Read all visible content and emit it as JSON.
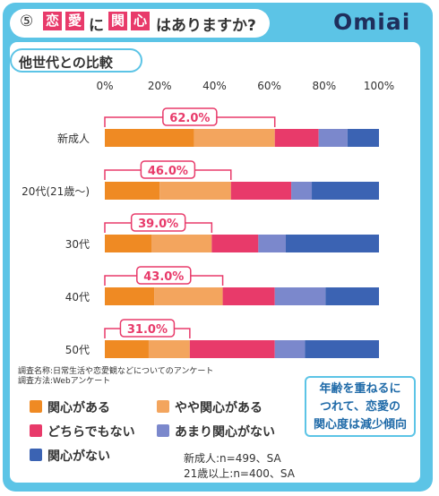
{
  "question": {
    "number": "⑤",
    "kanji1": "恋",
    "kanji2": "愛",
    "particle": "に",
    "kanji3": "関",
    "kanji4": "心",
    "tail": "はありますか?"
  },
  "logo": "Omiai",
  "subtitle": "他世代との比較",
  "chart_data": {
    "type": "bar",
    "orientation": "horizontal",
    "stacked": true,
    "x_ticks": [
      "0%",
      "20%",
      "40%",
      "60%",
      "80%",
      "100%"
    ],
    "xlim": [
      0,
      100
    ],
    "categories": [
      "新成人",
      "20代(21歳〜)",
      "30代",
      "40代",
      "50代"
    ],
    "series": [
      {
        "name": "関心がある",
        "color": "#ef8a23",
        "values": [
          32.5,
          20.0,
          17.0,
          18.0,
          16.0
        ]
      },
      {
        "name": "やや関心がある",
        "color": "#f3a55e",
        "values": [
          29.5,
          26.0,
          22.0,
          25.0,
          15.0
        ]
      },
      {
        "name": "どちらでもない",
        "color": "#e83a6a",
        "values": [
          16.0,
          22.0,
          17.0,
          19.0,
          31.0
        ]
      },
      {
        "name": "あまり関心がない",
        "color": "#7b88cc",
        "values": [
          10.5,
          7.5,
          10.0,
          18.5,
          11.0
        ]
      },
      {
        "name": "関心がない",
        "color": "#3b63b3",
        "values": [
          11.5,
          24.5,
          34.0,
          19.5,
          27.0
        ]
      }
    ],
    "annotations": [
      "62.0%",
      "46.0%",
      "39.0%",
      "43.0%",
      "31.0%"
    ],
    "annotation_values": [
      62.0,
      46.0,
      39.0,
      43.0,
      31.0
    ]
  },
  "notes": {
    "line1": "調査名称:日常生活や恋愛観などについてのアンケート",
    "line2": "調査方法:Webアンケート"
  },
  "legend": [
    "関心がある",
    "やや関心がある",
    "どちらでもない",
    "あまり関心がない",
    "関心がない"
  ],
  "sample": {
    "line1": "新成人:n=499、SA",
    "line2": "21歳以上:n=400、SA"
  },
  "callout": {
    "line1": "年齢を重ねるに",
    "line2": "つれて、恋愛の",
    "line3": "関心度は減少傾向"
  }
}
